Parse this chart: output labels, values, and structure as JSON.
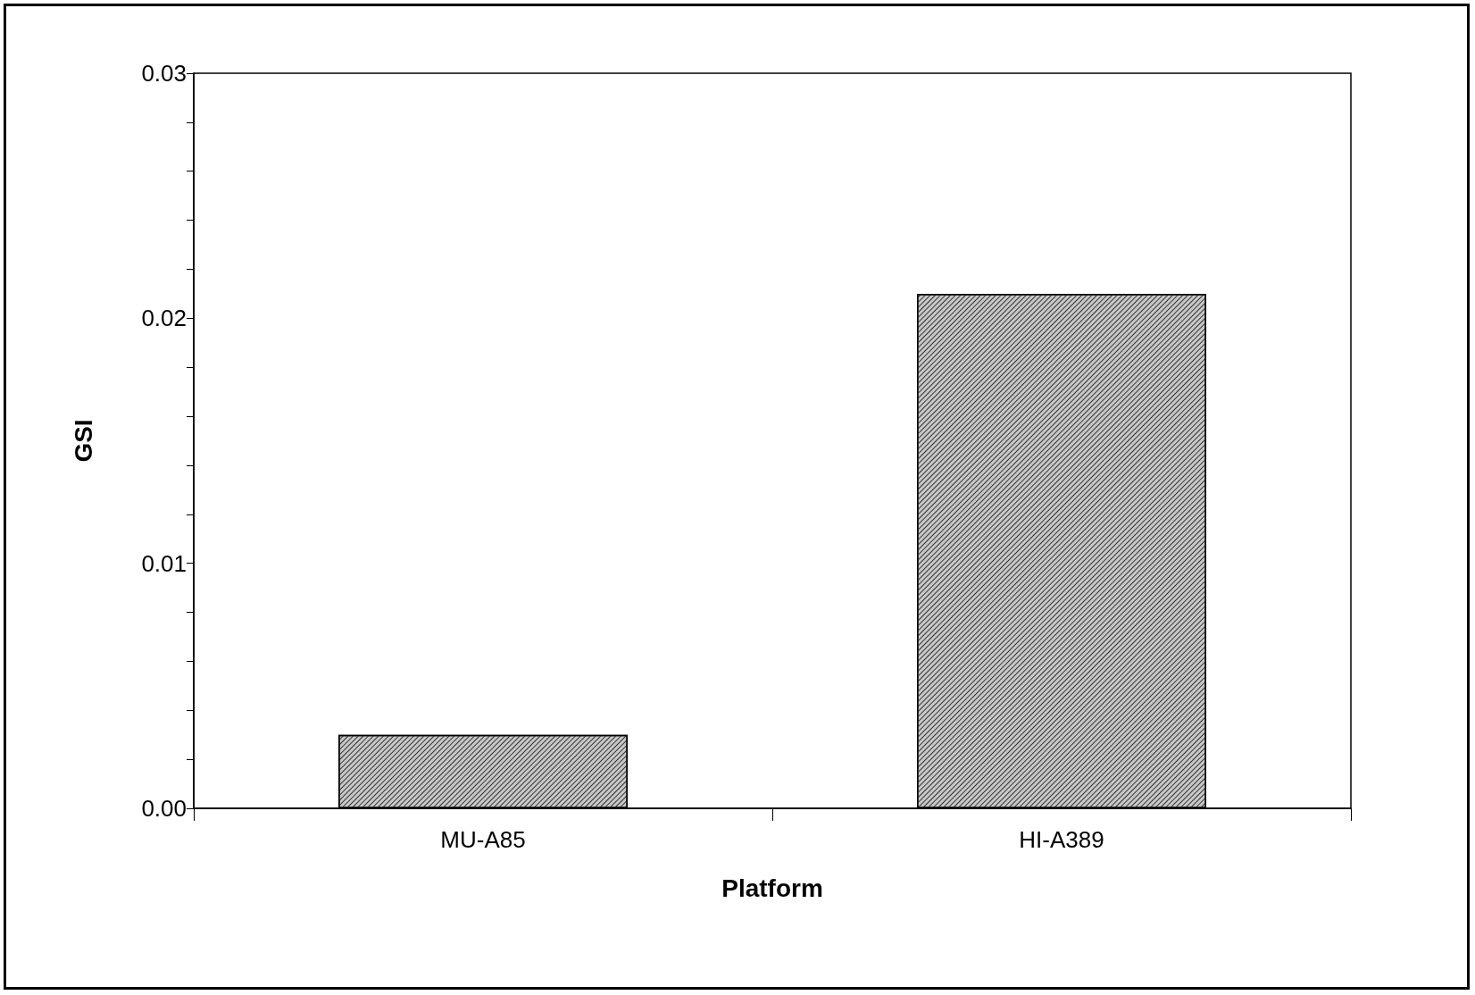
{
  "chart_data": {
    "type": "bar",
    "xlabel": "Platform",
    "ylabel": "GSI",
    "categories": [
      "MU-A85",
      "HI-A389"
    ],
    "values": [
      0.003,
      0.021
    ],
    "color": "#c8c8c8",
    "ylim": [
      0,
      0.03
    ],
    "yticks": [
      {
        "value": 0,
        "label": "0.00"
      },
      {
        "value": 0.002,
        "label": null
      },
      {
        "value": 0.004,
        "label": null
      },
      {
        "value": 0.006,
        "label": null
      },
      {
        "value": 0.008,
        "label": null
      },
      {
        "value": 0.01,
        "label": "0.01"
      },
      {
        "value": 0.012,
        "label": null
      },
      {
        "value": 0.014,
        "label": null
      },
      {
        "value": 0.016,
        "label": null
      },
      {
        "value": 0.018,
        "label": null
      },
      {
        "value": 0.02,
        "label": "0.02"
      },
      {
        "value": 0.022,
        "label": null
      },
      {
        "value": 0.024,
        "label": null
      },
      {
        "value": 0.026,
        "label": null
      },
      {
        "value": 0.028,
        "label": null
      },
      {
        "value": 0.03,
        "label": "0.03"
      }
    ],
    "grid": false
  }
}
